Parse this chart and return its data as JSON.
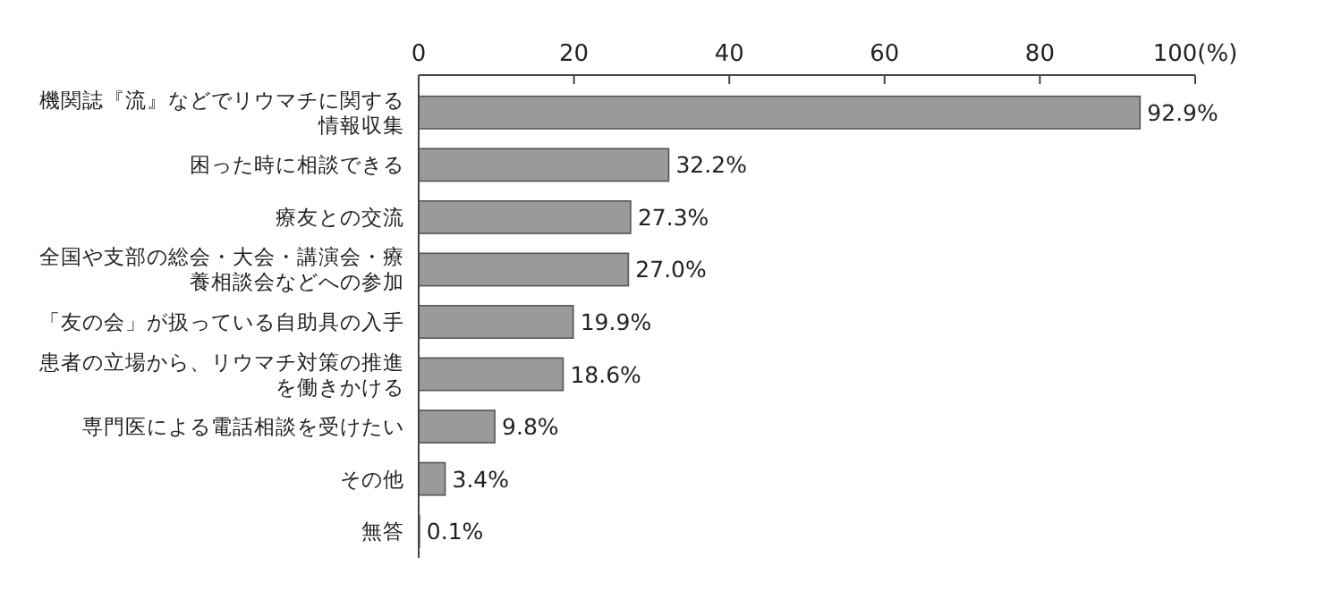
{
  "chart_data": {
    "type": "bar",
    "orientation": "horizontal",
    "categories": [
      "機関誌『流』などでリウマチに関する情報収集",
      "困った時に相談できる",
      "療友との交流",
      "全国や支部の総会・大会・講演会・療養相談会などへの参加",
      "「友の会」が扱っている自助具の入手",
      "患者の立場から、リウマチ対策の推進を働きかける",
      "専門医による電話相談を受けたい",
      "その他",
      "無答"
    ],
    "values": [
      92.9,
      32.2,
      27.3,
      27.0,
      19.9,
      18.6,
      9.8,
      3.4,
      0.1
    ],
    "value_labels": [
      "92.9%",
      "32.2%",
      "27.3%",
      "27.0%",
      "19.9%",
      "18.6%",
      "9.8%",
      "3.4%",
      "0.1%"
    ],
    "color": "#9a9a9a",
    "xlim": [
      0,
      100
    ],
    "xticks": [
      0,
      20,
      40,
      60,
      80,
      {
        "value": 100,
        "label": "100(%)"
      }
    ],
    "grid": false
  }
}
